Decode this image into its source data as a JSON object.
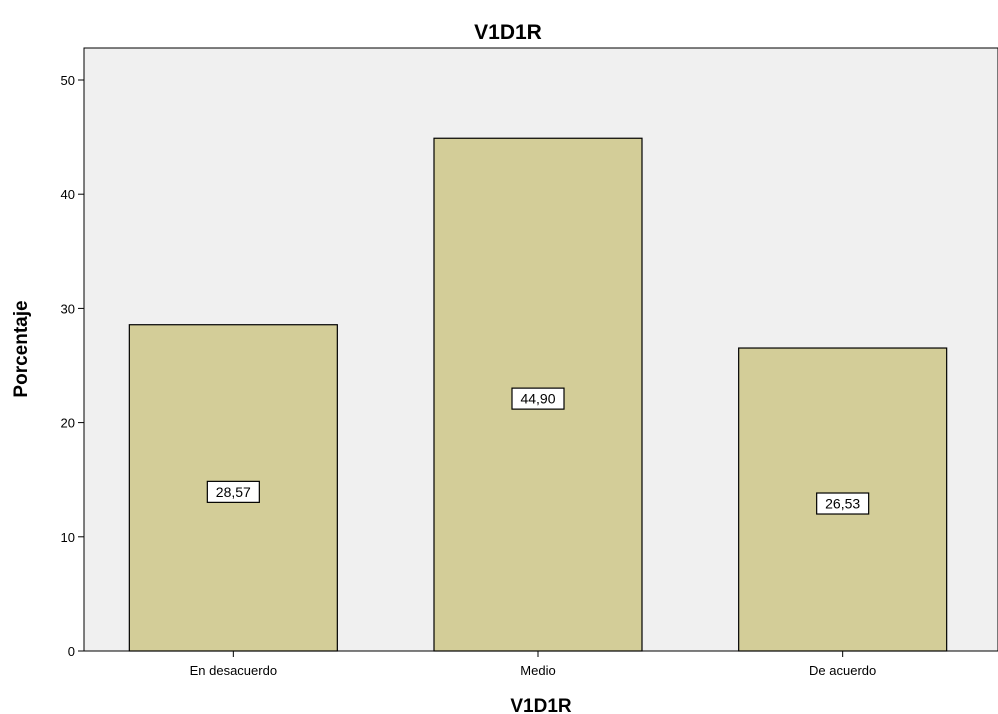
{
  "chart_data": {
    "type": "bar",
    "title": "V1D1R",
    "xlabel": "V1D1R",
    "ylabel": "Porcentaje",
    "categories": [
      "En desacuerdo",
      "Medio",
      "De acuerdo"
    ],
    "values": [
      28.57,
      44.9,
      26.53
    ],
    "data_labels": [
      "28,57",
      "44,90",
      "26,53"
    ],
    "ylim": [
      0,
      52
    ],
    "yticks": [
      0,
      10,
      20,
      30,
      40,
      50
    ],
    "ytick_labels": [
      "0",
      "10",
      "20",
      "30",
      "40",
      "50"
    ],
    "grid": false,
    "legend": "none",
    "colors": {
      "bar_fill": "#d3cd98",
      "bar_stroke": "#000000",
      "plot_background": "#f0f0f0",
      "page_background": "#ffffff"
    }
  }
}
